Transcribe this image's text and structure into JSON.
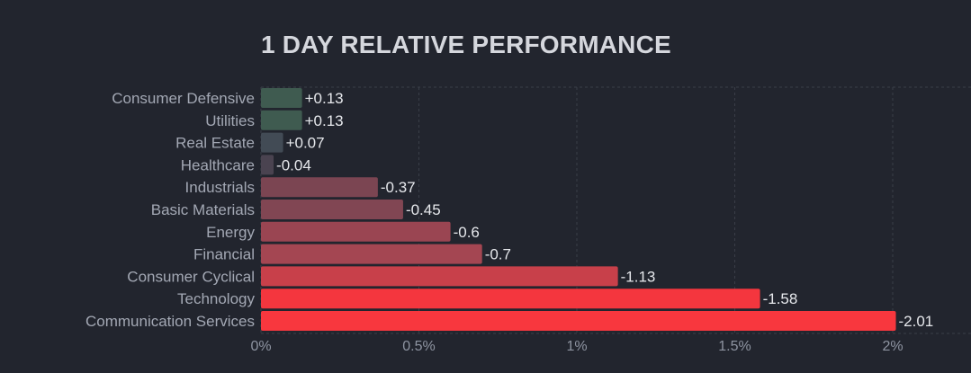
{
  "chart_data": {
    "type": "bar",
    "orientation": "horizontal",
    "title": "1 DAY RELATIVE PERFORMANCE",
    "categories": [
      "Consumer Defensive",
      "Utilities",
      "Real Estate",
      "Healthcare",
      "Industrials",
      "Basic Materials",
      "Energy",
      "Financial",
      "Consumer Cyclical",
      "Technology",
      "Communication Services"
    ],
    "values": [
      0.13,
      0.13,
      0.07,
      -0.04,
      -0.37,
      -0.45,
      -0.6,
      -0.7,
      -1.13,
      -1.58,
      -2.01
    ],
    "value_labels": [
      "+0.13",
      "+0.13",
      "+0.07",
      "-0.04",
      "-0.37",
      "-0.45",
      "-0.6",
      "-0.7",
      "-1.13",
      "-1.58",
      "-2.01"
    ],
    "bar_colors": [
      "#3f5b50",
      "#3f5b50",
      "#424b55",
      "#4a4350",
      "#7b4552",
      "#814653",
      "#9a4552",
      "#a44652",
      "#c8404a",
      "#f4363e",
      "#f8373e"
    ],
    "xlim": [
      0,
      2.2
    ],
    "x_ticks": [
      0,
      0.5,
      1,
      1.5,
      2
    ],
    "x_tick_labels": [
      "0%",
      "0.5%",
      "1%",
      "1.5%",
      "2%"
    ],
    "grid": true,
    "xlabel": "",
    "ylabel": ""
  }
}
